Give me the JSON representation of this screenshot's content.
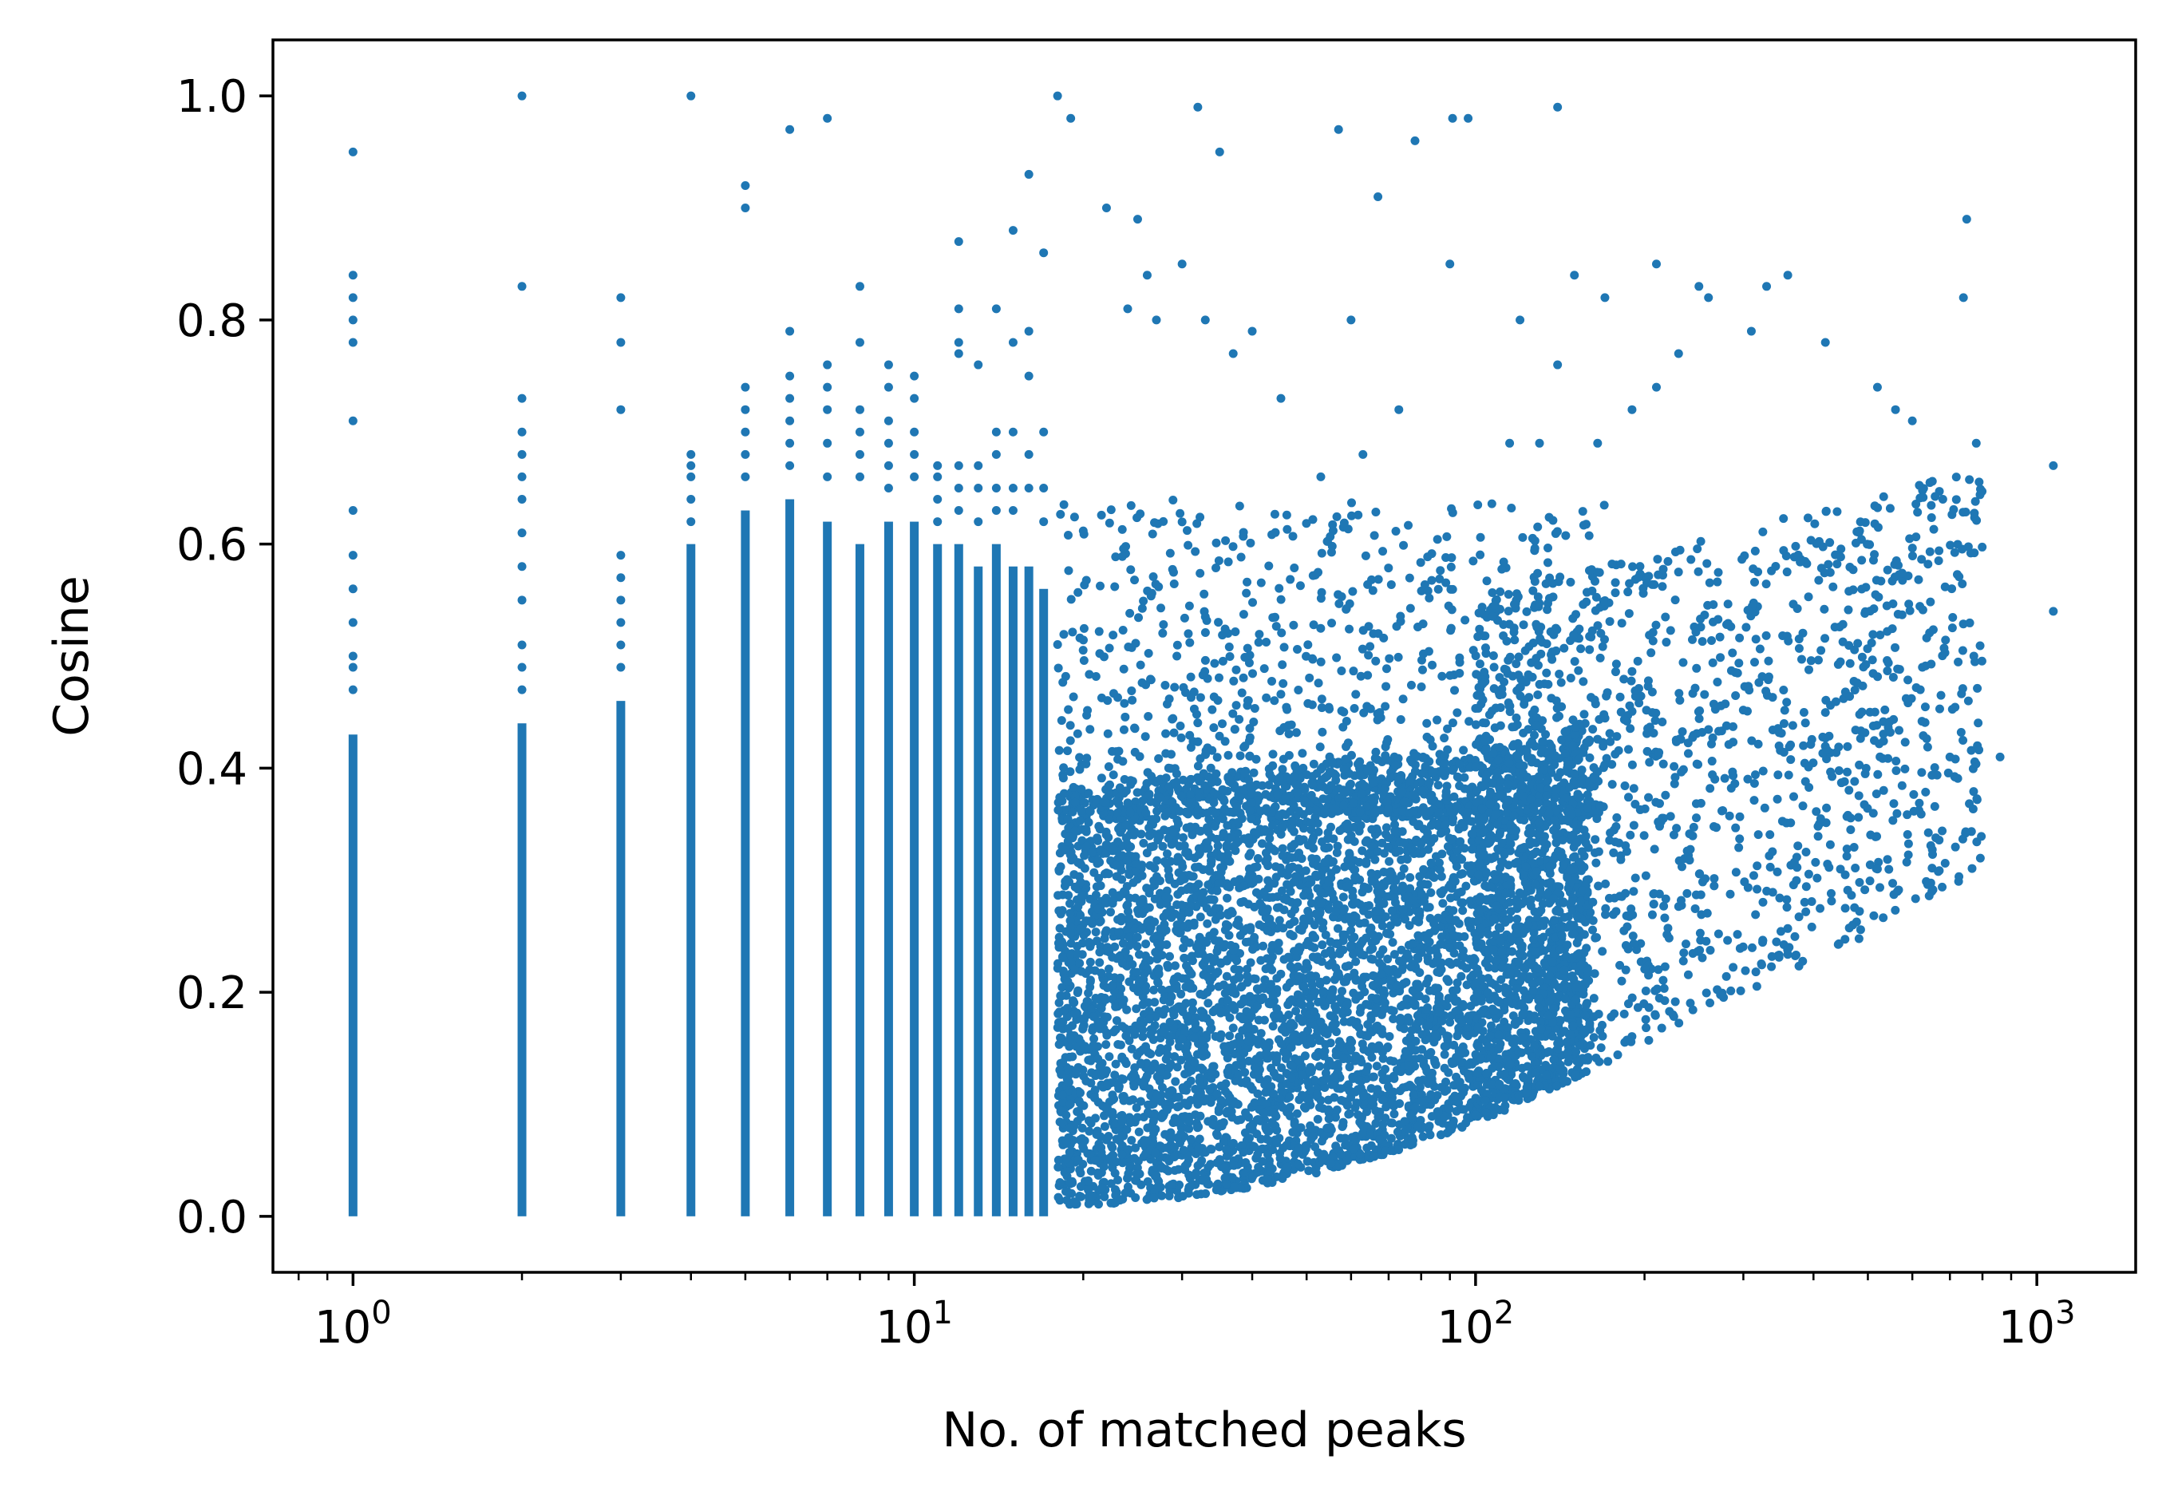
{
  "chart_data": {
    "type": "scatter",
    "title": "",
    "xlabel": "No. of matched peaks",
    "ylabel": "Cosine",
    "x_scale": "log",
    "xlim": [
      0.72,
      1500
    ],
    "ylim": [
      -0.05,
      1.05
    ],
    "x_ticks": [
      {
        "value": 1,
        "base": "10",
        "exp": "0"
      },
      {
        "value": 10,
        "base": "10",
        "exp": "1"
      },
      {
        "value": 100,
        "base": "10",
        "exp": "2"
      },
      {
        "value": 1000,
        "base": "10",
        "exp": "3"
      }
    ],
    "y_ticks": [
      {
        "value": 0.0,
        "label": "0.0"
      },
      {
        "value": 0.2,
        "label": "0.2"
      },
      {
        "value": 0.4,
        "label": "0.4"
      },
      {
        "value": 0.6,
        "label": "0.6"
      },
      {
        "value": 0.8,
        "label": "0.8"
      },
      {
        "value": 1.0,
        "label": "1.0"
      }
    ],
    "grid": false,
    "legend": "none",
    "marker_color": "#1f77b4",
    "columns": [
      {
        "x": 1,
        "ymin": 0.0,
        "ymax": 0.43,
        "extra": [
          0.95,
          0.84,
          0.82,
          0.8,
          0.78,
          0.71,
          0.63,
          0.59,
          0.56,
          0.53,
          0.5,
          0.49,
          0.47
        ]
      },
      {
        "x": 2,
        "ymin": 0.0,
        "ymax": 0.44,
        "extra": [
          1.0,
          0.83,
          0.73,
          0.7,
          0.68,
          0.66,
          0.64,
          0.61,
          0.58,
          0.55,
          0.51,
          0.49,
          0.47
        ]
      },
      {
        "x": 3,
        "ymin": 0.0,
        "ymax": 0.46,
        "extra": [
          0.82,
          0.78,
          0.72,
          0.59,
          0.57,
          0.55,
          0.53,
          0.51,
          0.49
        ]
      },
      {
        "x": 4,
        "ymin": 0.0,
        "ymax": 0.6,
        "extra": [
          1.0,
          0.68,
          0.67,
          0.66,
          0.64,
          0.62
        ]
      },
      {
        "x": 5,
        "ymin": 0.0,
        "ymax": 0.63,
        "extra": [
          0.92,
          0.9,
          0.74,
          0.72,
          0.7,
          0.68,
          0.66
        ]
      },
      {
        "x": 6,
        "ymin": 0.0,
        "ymax": 0.64,
        "extra": [
          0.97,
          0.79,
          0.75,
          0.73,
          0.71,
          0.69,
          0.67
        ]
      },
      {
        "x": 7,
        "ymin": 0.0,
        "ymax": 0.62,
        "extra": [
          0.98,
          0.76,
          0.74,
          0.72,
          0.69,
          0.66
        ]
      },
      {
        "x": 8,
        "ymin": 0.0,
        "ymax": 0.6,
        "extra": [
          0.83,
          0.78,
          0.72,
          0.7,
          0.68,
          0.66
        ]
      },
      {
        "x": 9,
        "ymin": 0.0,
        "ymax": 0.62,
        "extra": [
          0.76,
          0.74,
          0.71,
          0.69,
          0.67,
          0.65
        ]
      },
      {
        "x": 10,
        "ymin": 0.0,
        "ymax": 0.62,
        "extra": [
          0.75,
          0.73,
          0.7,
          0.68,
          0.66
        ]
      },
      {
        "x": 11,
        "ymin": 0.0,
        "ymax": 0.6,
        "extra": [
          0.67,
          0.66,
          0.64,
          0.62
        ]
      },
      {
        "x": 12,
        "ymin": 0.0,
        "ymax": 0.6,
        "extra": [
          0.87,
          0.81,
          0.78,
          0.77,
          0.67,
          0.65,
          0.63
        ]
      },
      {
        "x": 13,
        "ymin": 0.0,
        "ymax": 0.58,
        "extra": [
          0.76,
          0.67,
          0.65,
          0.62
        ]
      },
      {
        "x": 14,
        "ymin": 0.0,
        "ymax": 0.6,
        "extra": [
          0.81,
          0.7,
          0.68,
          0.65,
          0.63
        ]
      },
      {
        "x": 15,
        "ymin": 0.0,
        "ymax": 0.58,
        "extra": [
          0.88,
          0.78,
          0.7,
          0.65,
          0.63
        ]
      },
      {
        "x": 16,
        "ymin": 0.0,
        "ymax": 0.58,
        "extra": [
          0.93,
          0.79,
          0.75,
          0.68,
          0.65
        ]
      },
      {
        "x": 17,
        "ymin": 0.0,
        "ymax": 0.56,
        "extra": [
          0.86,
          0.7,
          0.65,
          0.62
        ]
      }
    ],
    "outliers": [
      [
        18,
        1.0
      ],
      [
        19,
        0.98
      ],
      [
        22,
        0.9
      ],
      [
        25,
        0.89
      ],
      [
        32,
        0.99
      ],
      [
        35,
        0.95
      ],
      [
        57,
        0.97
      ],
      [
        67,
        0.91
      ],
      [
        78,
        0.96
      ],
      [
        91,
        0.98
      ],
      [
        97,
        0.98
      ],
      [
        140,
        0.99
      ],
      [
        30,
        0.85
      ],
      [
        40,
        0.79
      ],
      [
        60,
        0.8
      ],
      [
        90,
        0.85
      ],
      [
        150,
        0.84
      ],
      [
        170,
        0.82
      ],
      [
        210,
        0.85
      ],
      [
        250,
        0.83
      ],
      [
        260,
        0.82
      ],
      [
        330,
        0.83
      ],
      [
        360,
        0.84
      ],
      [
        420,
        0.78
      ],
      [
        750,
        0.89
      ],
      [
        740,
        0.82
      ],
      [
        1070,
        0.67
      ],
      [
        1070,
        0.54
      ],
      [
        860,
        0.41
      ],
      [
        650,
        0.29
      ],
      [
        520,
        0.31
      ],
      [
        470,
        0.26
      ],
      [
        700,
        0.41
      ],
      [
        620,
        0.47
      ],
      [
        780,
        0.69
      ],
      [
        600,
        0.71
      ],
      [
        520,
        0.74
      ],
      [
        560,
        0.72
      ],
      [
        680,
        0.64
      ],
      [
        27,
        0.8
      ],
      [
        33,
        0.8
      ],
      [
        45,
        0.73
      ],
      [
        73,
        0.72
      ],
      [
        115,
        0.69
      ],
      [
        130,
        0.69
      ],
      [
        210,
        0.74
      ],
      [
        310,
        0.79
      ],
      [
        230,
        0.77
      ],
      [
        26,
        0.84
      ],
      [
        24,
        0.81
      ],
      [
        37,
        0.77
      ],
      [
        120,
        0.8
      ],
      [
        140,
        0.76
      ],
      [
        190,
        0.72
      ],
      [
        165,
        0.69
      ],
      [
        53,
        0.66
      ],
      [
        63,
        0.68
      ]
    ]
  }
}
